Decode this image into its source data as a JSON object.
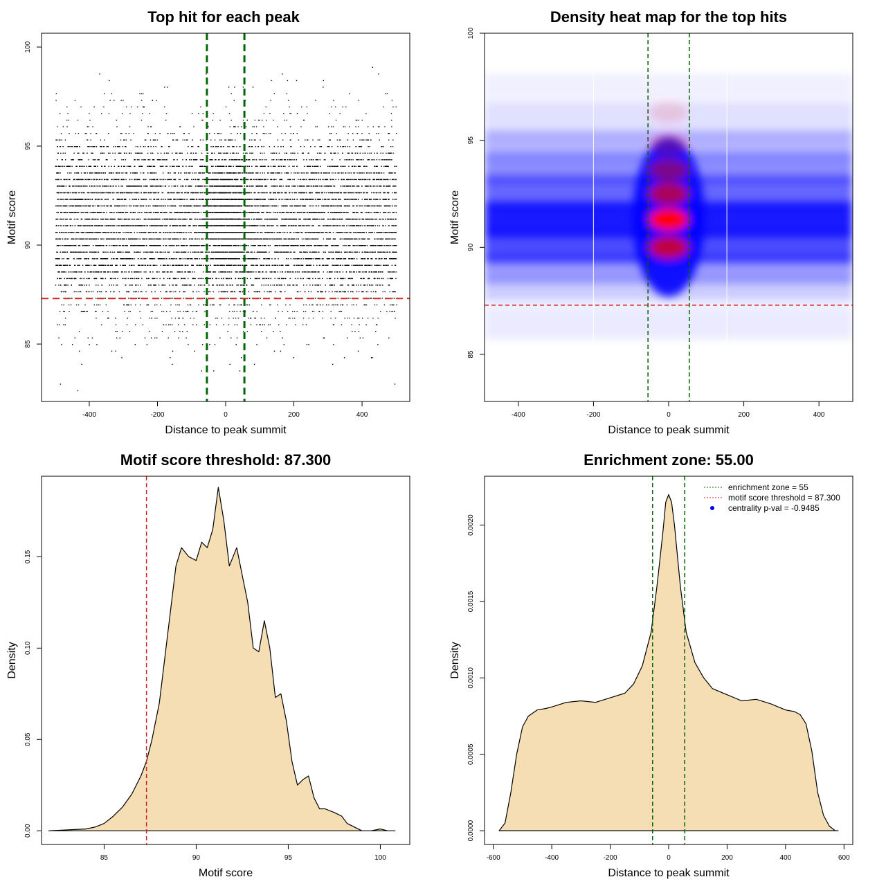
{
  "chart_data": [
    {
      "type": "scatter",
      "title": "Top hit for each peak",
      "xlabel": "Distance to peak summit",
      "ylabel": "Motif score",
      "xlim": [
        -540,
        540
      ],
      "ylim": [
        82.1,
        100.7
      ],
      "xticks": [
        -400,
        -200,
        0,
        200,
        400
      ],
      "yticks": [
        85,
        90,
        95,
        100
      ],
      "threshold_score": 87.3,
      "enrichment_zone": 55,
      "threshold_color": "#dd2222",
      "zone_color": "#006400",
      "point_color": "#000000",
      "points_description_density": "dense",
      "n_points_approx": 10000,
      "x_range_points": [
        -500,
        500
      ],
      "y_distribution": {
        "mean": 91.2,
        "sd": 2.3,
        "center_mean": 91.6,
        "center_sd": 1.4
      }
    },
    {
      "type": "heatmap",
      "title": "Density heat map for the top hits",
      "xlabel": "Distance to peak summit",
      "ylabel": "Motif score",
      "xlim": [
        -490,
        490
      ],
      "ylim": [
        82.8,
        100
      ],
      "xticks": [
        -400,
        -200,
        0,
        200,
        400
      ],
      "yticks": [
        85,
        90,
        95,
        100
      ],
      "threshold_score": 87.3,
      "enrichment_zone": 55,
      "colors": [
        "#ffffff",
        "#0000ff",
        "#ff0000"
      ],
      "hot_spots": [
        {
          "x": 0,
          "y": 91.3,
          "w": 1.0
        },
        {
          "x": 0,
          "y": 90.0,
          "w": 0.75
        },
        {
          "x": 0,
          "y": 92.5,
          "w": 0.65
        },
        {
          "x": 0,
          "y": 93.6,
          "w": 0.45
        },
        {
          "x": 0,
          "y": 94.8,
          "w": 0.25
        },
        {
          "x": 0,
          "y": 96.3,
          "w": 0.12
        }
      ]
    },
    {
      "type": "area",
      "title": "Motif score threshold: 87.300",
      "xlabel": "Motif score",
      "ylabel": "Density",
      "xlim": [
        81.6,
        101.6
      ],
      "ylim": [
        -0.0075,
        0.1941
      ],
      "xticks": [
        85,
        90,
        95,
        100
      ],
      "yticks": [
        "0.00",
        "0.05",
        "0.10",
        "0.15"
      ],
      "threshold": 87.3,
      "fill": "#f5deb3",
      "x": [
        82.0,
        84.0,
        84.5,
        85.0,
        85.5,
        86.0,
        86.5,
        87.0,
        87.3,
        87.6,
        88.0,
        88.3,
        88.6,
        88.9,
        89.2,
        89.6,
        90.0,
        90.3,
        90.6,
        90.9,
        91.2,
        91.5,
        91.8,
        92.2,
        92.5,
        92.8,
        93.1,
        93.4,
        93.7,
        94.0,
        94.3,
        94.6,
        94.9,
        95.2,
        95.5,
        95.8,
        96.1,
        96.4,
        96.7,
        97.0,
        97.5,
        97.9,
        98.2,
        98.6,
        99.0,
        99.5,
        100.0,
        100.4,
        100.8
      ],
      "y": [
        0.0,
        0.001,
        0.002,
        0.004,
        0.008,
        0.013,
        0.02,
        0.03,
        0.038,
        0.05,
        0.07,
        0.095,
        0.12,
        0.145,
        0.155,
        0.15,
        0.148,
        0.158,
        0.155,
        0.165,
        0.188,
        0.17,
        0.145,
        0.155,
        0.14,
        0.125,
        0.1,
        0.098,
        0.115,
        0.1,
        0.073,
        0.075,
        0.06,
        0.038,
        0.025,
        0.028,
        0.03,
        0.018,
        0.012,
        0.012,
        0.01,
        0.008,
        0.004,
        0.002,
        0.0,
        0.0,
        0.001,
        0.0,
        0.0
      ]
    },
    {
      "type": "area",
      "title": "Enrichment zone: 55.00",
      "xlabel": "Distance to peak summit",
      "ylabel": "Density",
      "xlim": [
        -630,
        630
      ],
      "ylim": [
        -9e-05,
        0.00232
      ],
      "xticks": [
        -600,
        -400,
        -200,
        0,
        200,
        400,
        600
      ],
      "yticks": [
        "0.0000",
        "0.0005",
        "0.0010",
        "0.0015",
        "0.0020"
      ],
      "enrichment_zone": 55,
      "fill": "#f5deb3",
      "legend": [
        {
          "label": "enrichment zone = 55",
          "style": "dotted-line",
          "color": "#006400"
        },
        {
          "label": "motif score threshold = 87.300",
          "style": "dotted-line",
          "color": "#dd2222"
        },
        {
          "label": "centrality p-val = -0.9485",
          "style": "point",
          "color": "#0000ff"
        }
      ],
      "legend_position": "top-right",
      "x": [
        -580,
        -560,
        -540,
        -520,
        -500,
        -480,
        -450,
        -420,
        -400,
        -350,
        -300,
        -250,
        -200,
        -150,
        -120,
        -90,
        -60,
        -40,
        -20,
        -10,
        0,
        10,
        20,
        40,
        60,
        90,
        120,
        150,
        200,
        250,
        300,
        350,
        400,
        430,
        450,
        470,
        490,
        510,
        530,
        550,
        570,
        580
      ],
      "y": [
        0.0,
        5e-05,
        0.00025,
        0.0005,
        0.00068,
        0.00075,
        0.00079,
        0.0008,
        0.00081,
        0.00084,
        0.00085,
        0.00084,
        0.00087,
        0.0009,
        0.00096,
        0.00108,
        0.0013,
        0.0016,
        0.00195,
        0.00215,
        0.0022,
        0.00215,
        0.002,
        0.0016,
        0.0013,
        0.0011,
        0.001,
        0.00093,
        0.00089,
        0.00085,
        0.00086,
        0.00083,
        0.00079,
        0.00078,
        0.00076,
        0.0007,
        0.00052,
        0.00025,
        0.0001,
        3e-05,
        0.0,
        0.0
      ]
    }
  ]
}
